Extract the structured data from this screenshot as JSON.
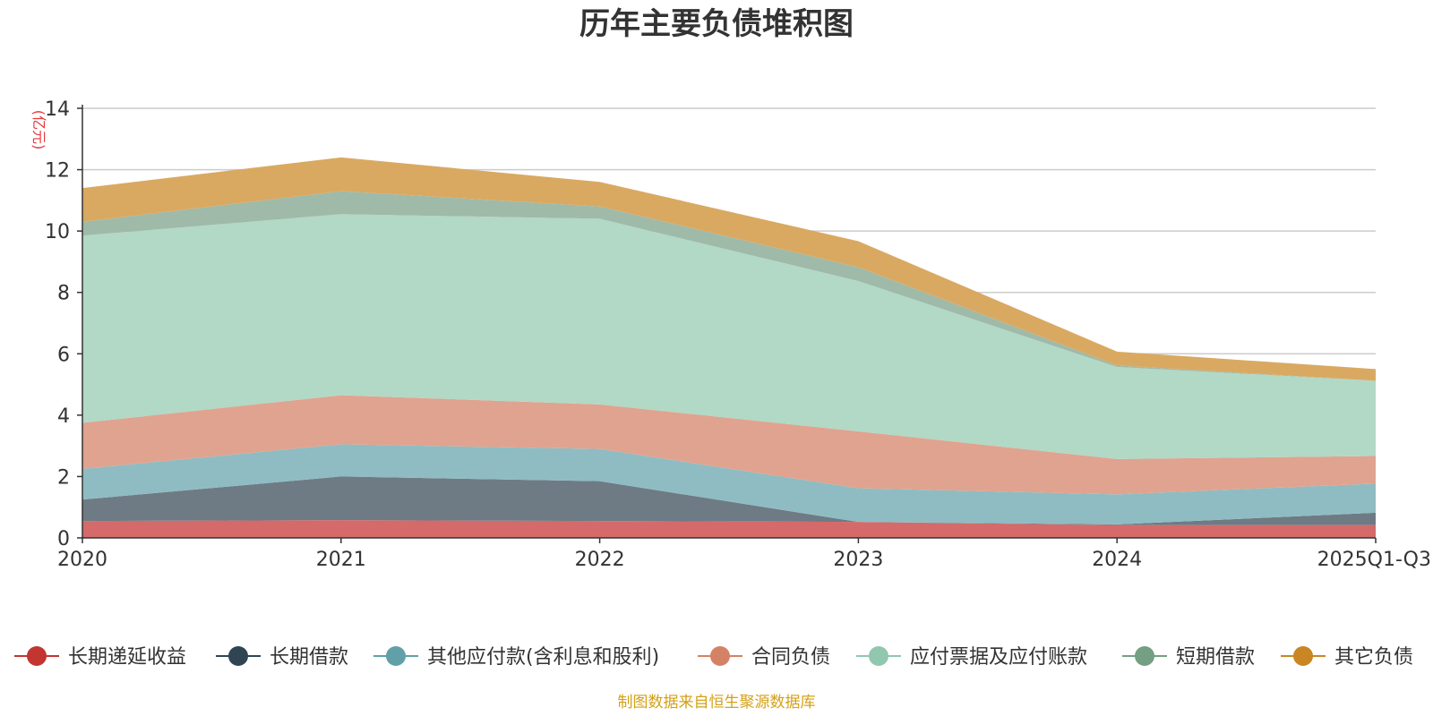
{
  "chart_data": {
    "type": "area",
    "stacked": true,
    "title": "历年主要负债堆积图",
    "unit_label": "(亿元)",
    "source_note": "制图数据来自恒生聚源数据库",
    "categories": [
      "2020",
      "2021",
      "2022",
      "2023",
      "2024",
      "2025Q1-Q3"
    ],
    "ylim": [
      0,
      14
    ],
    "yticks": [
      0,
      2,
      4,
      6,
      8,
      10,
      12,
      14
    ],
    "grid": true,
    "legend_position": "bottom",
    "series": [
      {
        "name": "长期递延收益",
        "color": "#c23531",
        "fill": "#d46a6a",
        "values": [
          0.55,
          0.58,
          0.55,
          0.52,
          0.42,
          0.42
        ]
      },
      {
        "name": "长期借款",
        "color": "#2f4554",
        "fill": "#6e7b85",
        "values": [
          0.7,
          1.42,
          1.3,
          0.0,
          0.02,
          0.4
        ]
      },
      {
        "name": "其他应付款(含利息和股利)",
        "color": "#61a0a8",
        "fill": "#8fbcc2",
        "values": [
          1.0,
          1.05,
          1.05,
          1.1,
          0.98,
          0.95
        ]
      },
      {
        "name": "合同负债",
        "color": "#d48265",
        "fill": "#e0a38f",
        "values": [
          1.5,
          1.6,
          1.45,
          1.85,
          1.15,
          0.9
        ]
      },
      {
        "name": "应付票据及应付账款",
        "color": "#91c7ae",
        "fill": "#b2d8c6",
        "values": [
          6.1,
          5.9,
          6.05,
          4.9,
          3.0,
          2.45
        ]
      },
      {
        "name": "短期借款",
        "color": "#749f83",
        "fill": "#9fbaa8",
        "values": [
          0.45,
          0.75,
          0.4,
          0.45,
          0.05,
          0.0
        ]
      },
      {
        "name": "其它负债",
        "color": "#ca8622",
        "fill": "#d9a962",
        "values": [
          1.1,
          1.1,
          0.8,
          0.85,
          0.45,
          0.38
        ]
      }
    ]
  }
}
